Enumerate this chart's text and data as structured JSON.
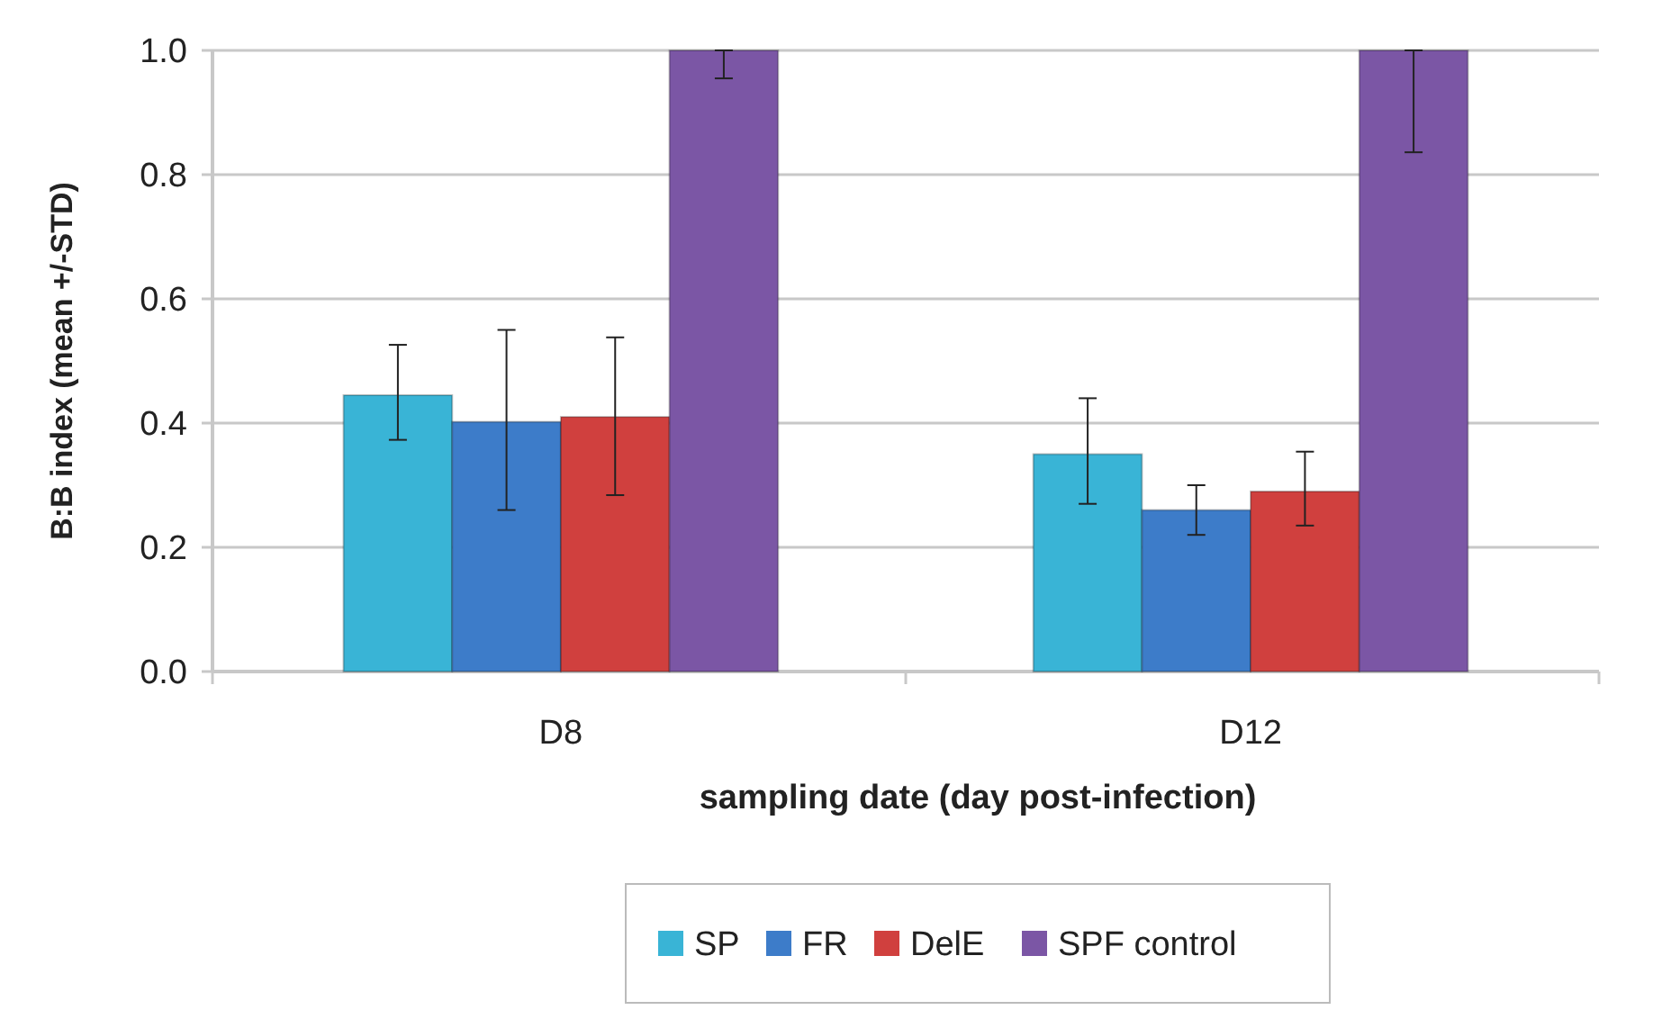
{
  "chart_data": {
    "type": "bar",
    "xlabel": "sampling date (day post-infection)",
    "ylabel": "B:B index (mean +/-STD)",
    "categories": [
      "D8",
      "D12"
    ],
    "series": [
      {
        "name": "SP",
        "color": "#39b4d6",
        "values": [
          0.445,
          0.35
        ],
        "errors": [
          [
            0.373,
            0.526
          ],
          [
            0.27,
            0.44
          ]
        ]
      },
      {
        "name": "FR",
        "color": "#3d7cc9",
        "values": [
          0.402,
          0.26
        ],
        "errors": [
          [
            0.26,
            0.55
          ],
          [
            0.22,
            0.3
          ]
        ]
      },
      {
        "name": "DelE",
        "color": "#d0403e",
        "values": [
          0.41,
          0.29
        ],
        "errors": [
          [
            0.284,
            0.538
          ],
          [
            0.235,
            0.354
          ]
        ]
      },
      {
        "name": "SPF control",
        "color": "#7b56a5",
        "values": [
          1.0,
          1.0
        ],
        "errors": [
          [
            0.955,
            1.0
          ],
          [
            0.836,
            1.0
          ]
        ]
      }
    ],
    "ylim": [
      0,
      1
    ],
    "yticks": [
      {
        "value": 0,
        "label": "0.0"
      },
      {
        "value": 0.2,
        "label": "0.2"
      },
      {
        "value": 0.4,
        "label": "0.4"
      },
      {
        "value": 0.6,
        "label": "0.6"
      },
      {
        "value": 0.8,
        "label": "0.8"
      },
      {
        "value": 1,
        "label": "1.0"
      }
    ],
    "grid": "y",
    "legend": "bottom"
  }
}
